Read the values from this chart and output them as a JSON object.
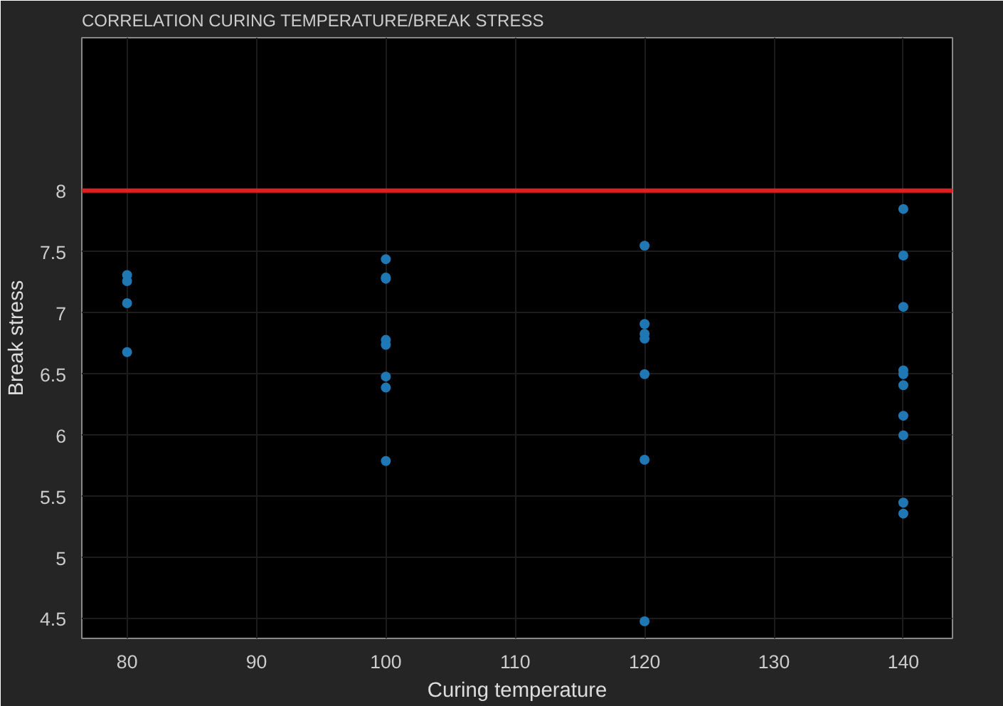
{
  "chart_data": {
    "type": "scatter",
    "title": "CORRELATION CURING TEMPERATURE/BREAK STRESS",
    "xlabel": "Curing temperature",
    "ylabel": "Break stress",
    "series": [
      {
        "color": "#1f77b4",
        "x": [
          80,
          80,
          80,
          80,
          100,
          100,
          100,
          100,
          100,
          100,
          100,
          100,
          120,
          120,
          120,
          120,
          120,
          120,
          120,
          140,
          140,
          140,
          140,
          140,
          140,
          140,
          140,
          140,
          140
        ],
        "values": [
          7.31,
          7.26,
          7.08,
          6.68,
          7.44,
          7.29,
          7.28,
          6.78,
          6.74,
          6.48,
          6.39,
          5.79,
          7.55,
          6.91,
          6.83,
          6.79,
          6.5,
          5.8,
          4.48,
          7.85,
          7.47,
          7.05,
          6.53,
          6.5,
          6.41,
          6.16,
          6.0,
          5.45,
          5.36
        ]
      }
    ],
    "xlim": [
      76.5,
      143.8
    ],
    "ylim": [
      4.34,
      9.25
    ],
    "xticks": [
      80,
      90,
      100,
      110,
      120,
      130,
      140
    ],
    "yticks": [
      4.5,
      5,
      5.5,
      6,
      6.5,
      7,
      7.5,
      8
    ],
    "ref_lines": [
      {
        "axis": "y",
        "value": 8,
        "color": "#e02020"
      }
    ],
    "grid": true,
    "marker": "circle"
  }
}
